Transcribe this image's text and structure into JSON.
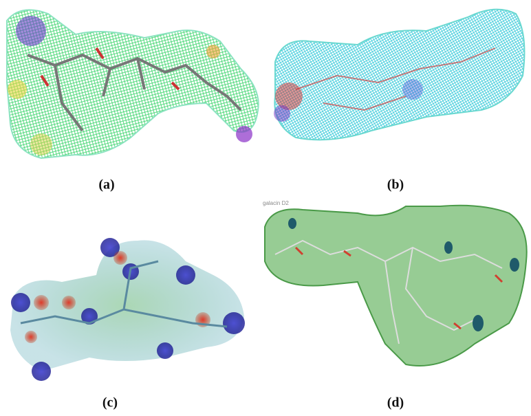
{
  "panels": [
    {
      "label": "(a)"
    },
    {
      "label": "(b)"
    },
    {
      "label": "(c)"
    },
    {
      "label": "(d)",
      "caption": "galacin D2"
    }
  ]
}
